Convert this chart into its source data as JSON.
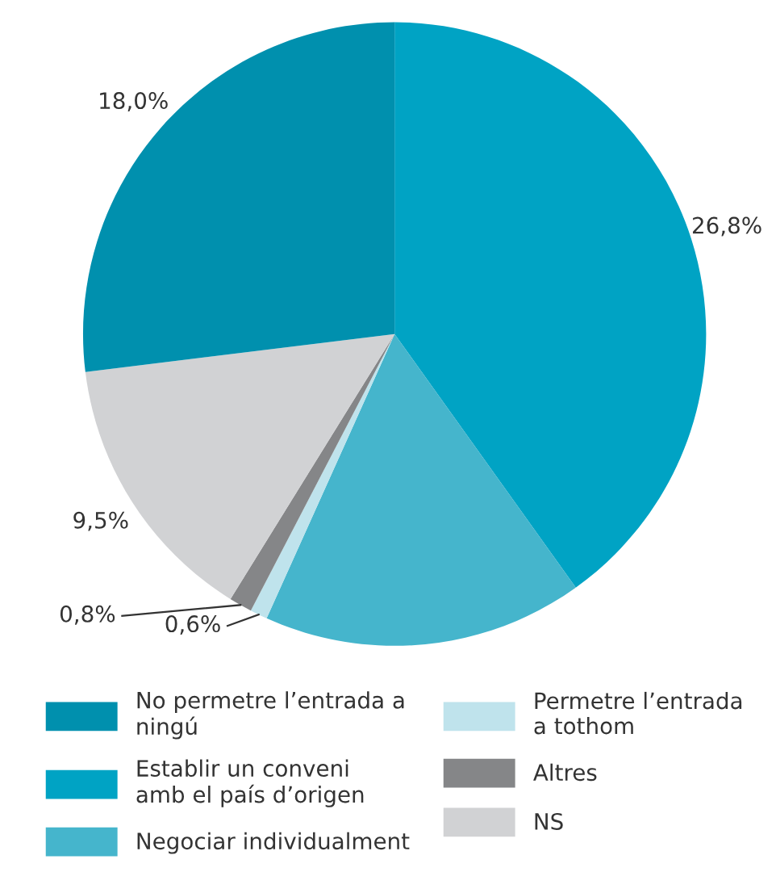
{
  "chart_data": {
    "type": "pie",
    "categories": [
      "Establir un conveni\namb el país d’origen",
      "Negociar individualment",
      "Permetre l’entrada\na tothom",
      "Altres",
      "NS",
      "No permetre l’entrada a\nningú"
    ],
    "values": [
      26.8,
      11.1,
      0.6,
      0.8,
      9.5,
      18.0
    ],
    "value_labels": [
      "26,8%",
      null,
      "0,6%",
      "0,8%",
      "9,5%",
      "18,0%"
    ],
    "colors": [
      "#00a3c4",
      "#45b5cc",
      "#bfe3ec",
      "#858688",
      "#d1d2d4",
      "#0090ae"
    ],
    "legend": "bottom"
  }
}
